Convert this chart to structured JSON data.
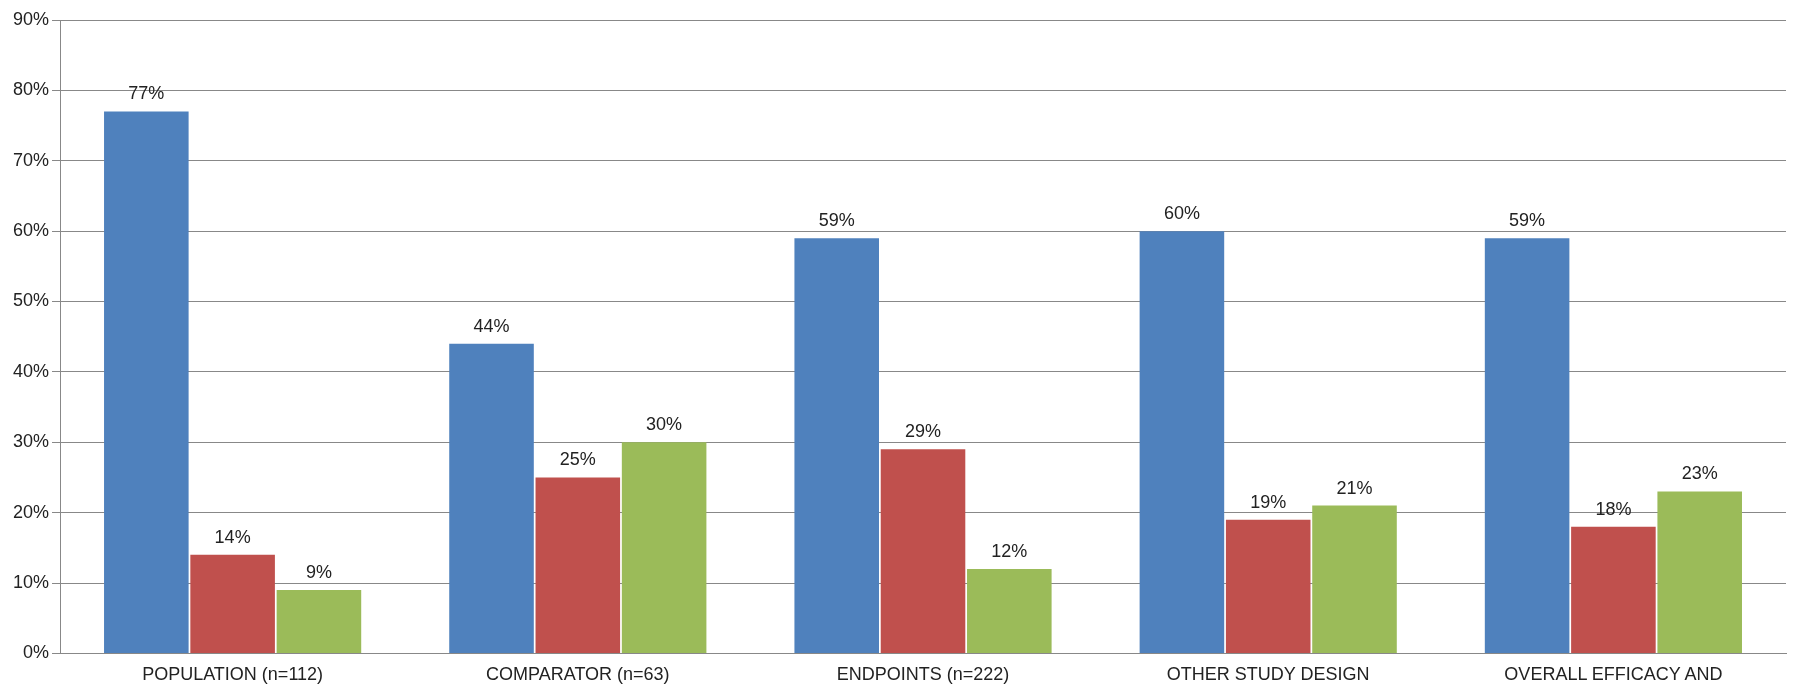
{
  "chart_data": {
    "type": "bar",
    "categories": [
      "POPULATION (n=112)",
      "COMPARATOR (n=63)",
      "ENDPOINTS (n=222)",
      "OTHER STUDY DESIGN",
      "OVERALL EFFICACY AND"
    ],
    "series": [
      {
        "color": "#4f81bd",
        "values": [
          77,
          44,
          59,
          60,
          59
        ],
        "value_labels": [
          "77%",
          "44%",
          "59%",
          "60%",
          "59%"
        ]
      },
      {
        "color": "#c0504d",
        "values": [
          14,
          25,
          29,
          19,
          18
        ],
        "value_labels": [
          "14%",
          "25%",
          "29%",
          "19%",
          "18%"
        ]
      },
      {
        "color": "#9bbb59",
        "values": [
          9,
          30,
          12,
          21,
          23
        ],
        "value_labels": [
          "9%",
          "30%",
          "12%",
          "21%",
          "23%"
        ]
      }
    ],
    "ylim": [
      0,
      90
    ],
    "yticks": [
      {
        "value": 0,
        "label": "0%"
      },
      {
        "value": 10,
        "label": "10%"
      },
      {
        "value": 20,
        "label": "20%"
      },
      {
        "value": 30,
        "label": "30%"
      },
      {
        "value": 40,
        "label": "40%"
      },
      {
        "value": 50,
        "label": "50%"
      },
      {
        "value": 60,
        "label": "60%"
      },
      {
        "value": 70,
        "label": "70%"
      },
      {
        "value": 80,
        "label": "80%"
      },
      {
        "value": 90,
        "label": "90%"
      }
    ],
    "grid": "y",
    "legend": false
  }
}
